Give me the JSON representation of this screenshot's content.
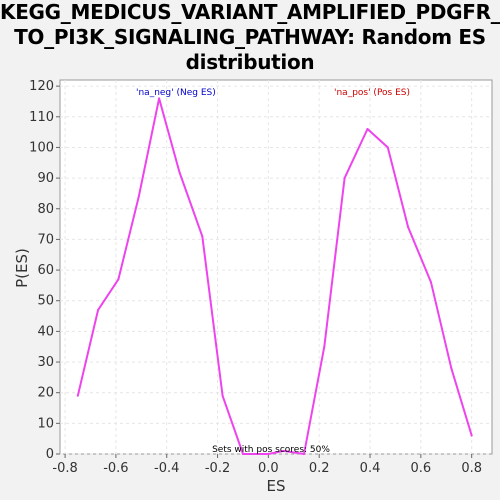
{
  "chart_data": {
    "type": "line",
    "title_lines": [
      "KEGG_MEDICUS_VARIANT_AMPLIFIED_PDGFR_",
      "TO_PI3K_SIGNALING_PATHWAY: Random ES",
      "distribution"
    ],
    "xlabel": "ES",
    "ylabel": "P(ES)",
    "xlim": [
      -0.82,
      0.88
    ],
    "ylim": [
      0,
      122
    ],
    "x_ticks": [
      -0.8,
      -0.6,
      -0.4,
      -0.2,
      0.0,
      0.2,
      0.4,
      0.6,
      0.8
    ],
    "x_tick_labels": [
      "-0.8",
      "-0.6",
      "-0.4",
      "-0.2",
      "0.0",
      "0.2",
      "0.4",
      "0.6",
      "0.8"
    ],
    "y_ticks": [
      0,
      10,
      20,
      30,
      40,
      50,
      60,
      70,
      80,
      90,
      100,
      110,
      120
    ],
    "y_tick_labels": [
      "0",
      "10",
      "20",
      "30",
      "40",
      "50",
      "60",
      "70",
      "80",
      "90",
      "100",
      "110",
      "120"
    ],
    "grid": true,
    "line_color": "#ee44ee",
    "series": [
      {
        "points": [
          [
            -0.75,
            19
          ],
          [
            -0.67,
            47
          ],
          [
            -0.59,
            57
          ],
          [
            -0.51,
            84
          ],
          [
            -0.43,
            116
          ],
          [
            -0.35,
            92
          ],
          [
            -0.26,
            71
          ],
          [
            -0.18,
            19
          ],
          [
            -0.1,
            0
          ],
          [
            0.0,
            0
          ],
          [
            0.06,
            1
          ],
          [
            0.14,
            0
          ],
          [
            0.22,
            35
          ],
          [
            0.3,
            90
          ],
          [
            0.39,
            106
          ],
          [
            0.47,
            100
          ],
          [
            0.55,
            74
          ],
          [
            0.64,
            56
          ],
          [
            0.72,
            28
          ],
          [
            0.8,
            6
          ]
        ]
      }
    ],
    "legend": [
      {
        "label": "'na_neg' (Neg ES)",
        "color": "#0000cc",
        "position": "top-left"
      },
      {
        "label": "'na_pos' (Pos ES)",
        "color": "#cc0000",
        "position": "top-right"
      }
    ],
    "annotation": "Sets with pos scores: 50%"
  }
}
